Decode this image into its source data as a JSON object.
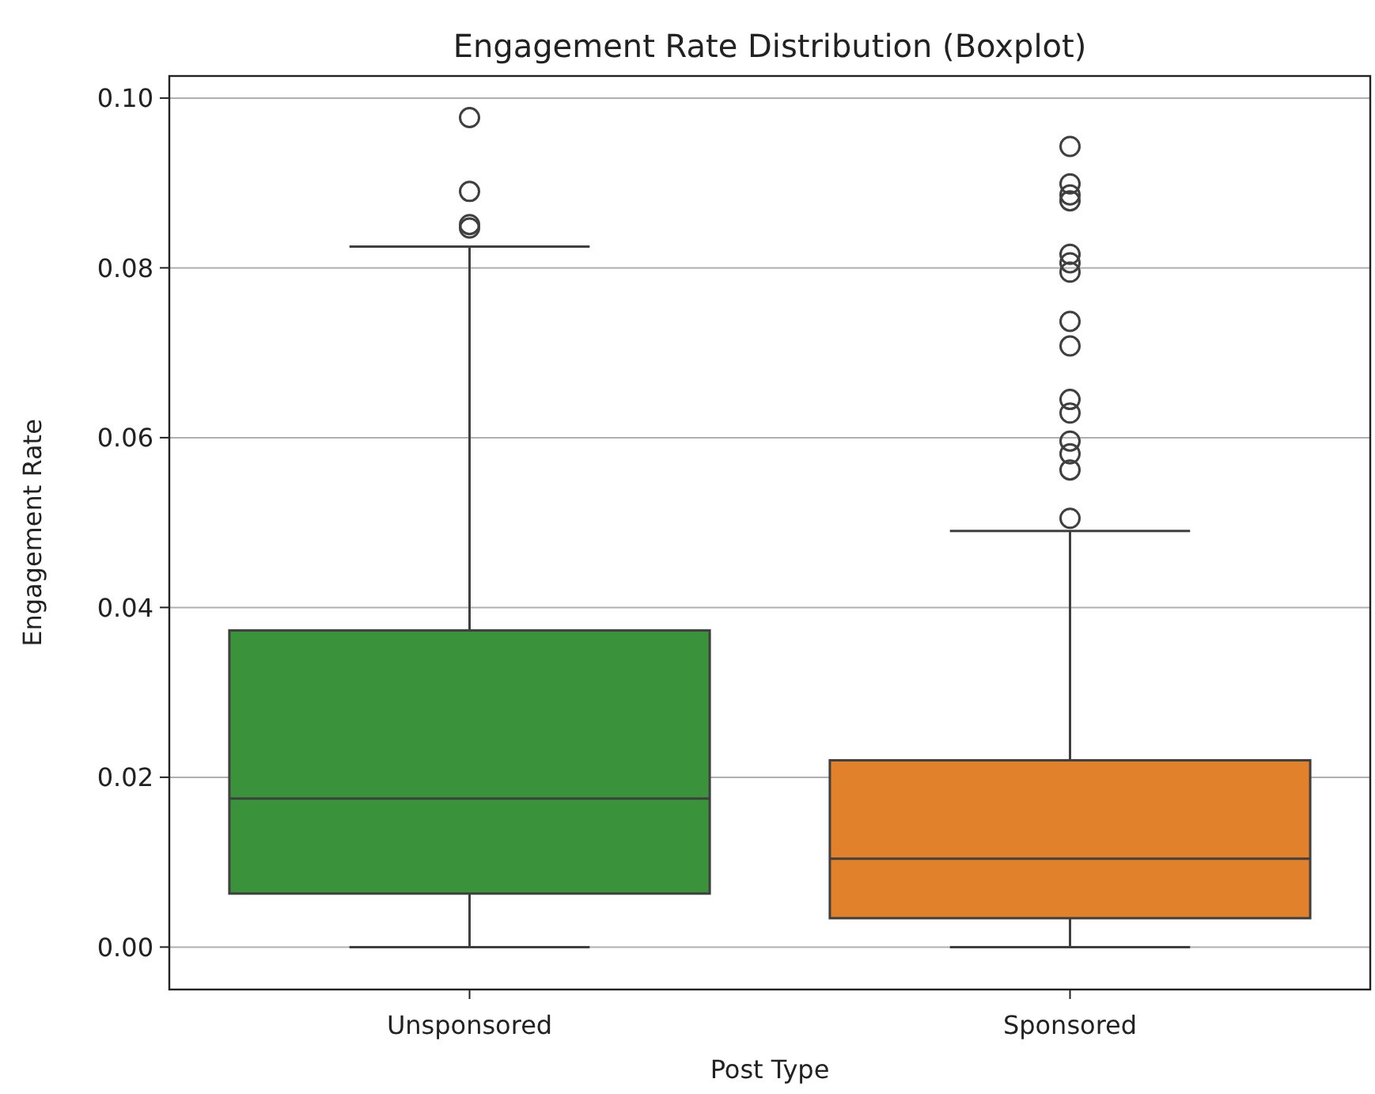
{
  "chart_data": {
    "type": "box",
    "title": "Engagement Rate Distribution (Boxplot)",
    "xlabel": "Post Type",
    "ylabel": "Engagement Rate",
    "categories": [
      "Unsponsored",
      "Sponsored"
    ],
    "colors": [
      "#3a923a",
      "#e1812c"
    ],
    "boxes": [
      {
        "low": 0,
        "q1": 0.0063,
        "median": 0.0175,
        "q3": 0.0373,
        "high": 0.0825,
        "outliers": [
          0.0977,
          0.089,
          0.0851,
          0.0847
        ]
      },
      {
        "low": 0,
        "q1": 0.0034,
        "median": 0.0104,
        "q3": 0.022,
        "high": 0.049,
        "outliers": [
          0.0943,
          0.0899,
          0.0886,
          0.0879,
          0.0816,
          0.0806,
          0.0795,
          0.0737,
          0.0708,
          0.0645,
          0.0629,
          0.0596,
          0.0581,
          0.0562,
          0.0505
        ]
      }
    ],
    "ylim": [
      -0.005,
      0.1026
    ],
    "yticks": [
      {
        "value": 0,
        "label": "0.00"
      },
      {
        "value": 0.02,
        "label": "0.02"
      },
      {
        "value": 0.04,
        "label": "0.04"
      },
      {
        "value": 0.06,
        "label": "0.06"
      },
      {
        "value": 0.08,
        "label": "0.08"
      },
      {
        "value": 0.1,
        "label": "0.10"
      }
    ],
    "grid": "y",
    "marker": "circle"
  }
}
